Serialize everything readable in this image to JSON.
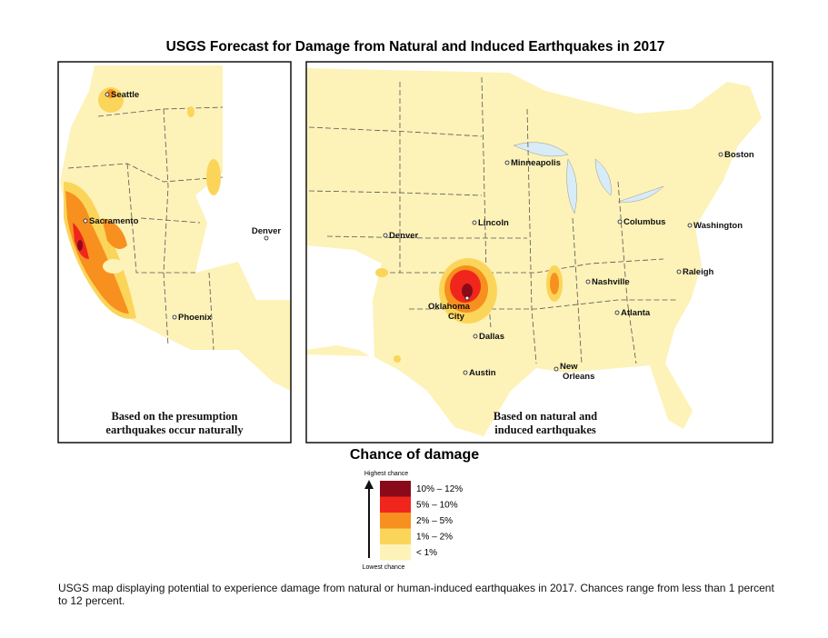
{
  "title": "USGS Forecast for Damage from Natural and Induced Earthquakes in 2017",
  "panels": [
    {
      "caption": [
        "Based on the presumption",
        "earthquakes occur naturally"
      ],
      "cities": [
        [
          "Seattle"
        ],
        [
          "Sacramento"
        ],
        [
          "Denver"
        ],
        [
          "Phoenix"
        ]
      ]
    },
    {
      "caption": [
        "Based on natural and",
        "induced earthquakes"
      ],
      "cities": [
        [
          "Minneapolis"
        ],
        [
          "Boston"
        ],
        [
          "Denver"
        ],
        [
          "Lincoln"
        ],
        [
          "Columbus"
        ],
        [
          "Washington"
        ],
        [
          "Raleigh"
        ],
        [
          "Nashville"
        ],
        [
          "Oklahoma",
          "City"
        ],
        [
          "Atlanta"
        ],
        [
          "Dallas"
        ],
        [
          "Austin"
        ],
        [
          "New",
          "Orleans"
        ]
      ]
    }
  ],
  "legend": {
    "title": "Chance of damage",
    "top_label": "Highest chance",
    "bottom_label": "Lowest chance",
    "items": [
      {
        "label": "10% – 12%",
        "color": "#8b0a1a"
      },
      {
        "label": "5% – 10%",
        "color": "#f0261c"
      },
      {
        "label": "2% – 5%",
        "color": "#f7901e"
      },
      {
        "label": "1% – 2%",
        "color": "#fbd55a"
      },
      {
        "label": "< 1%",
        "color": "#fdf2b8"
      }
    ]
  },
  "footnote": "USGS map displaying potential to experience damage from natural or human-induced earthquakes in 2017. Chances range from less than 1 percent to 12 percent."
}
